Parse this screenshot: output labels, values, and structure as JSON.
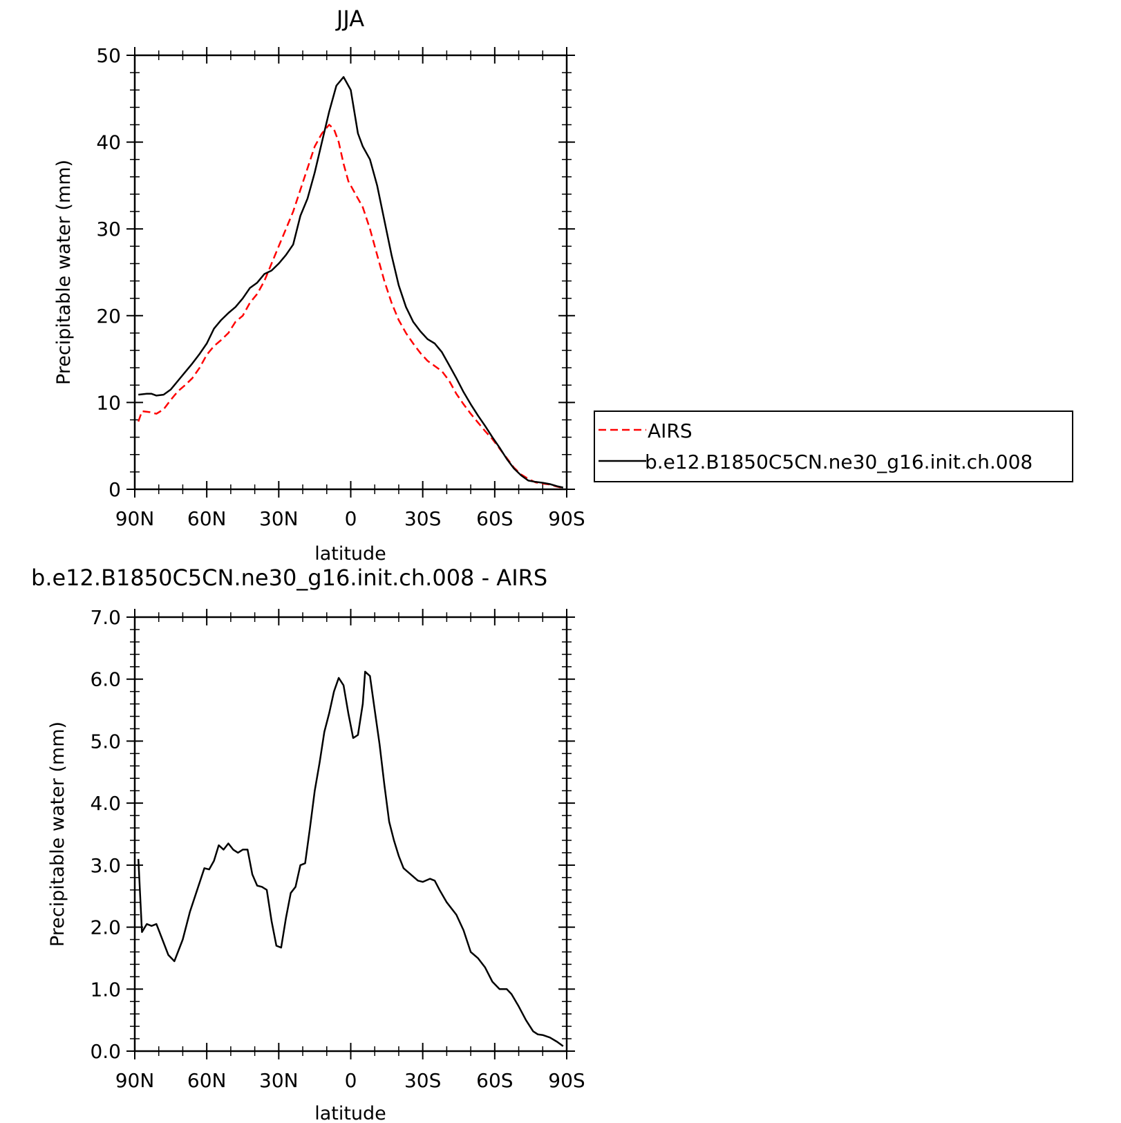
{
  "chart_data": [
    {
      "type": "line",
      "title": "JJA",
      "xlabel": "latitude",
      "ylabel": "Precipitable water (mm)",
      "xlim": [
        90,
        -90
      ],
      "ylim": [
        0,
        50
      ],
      "x_ticks": [
        {
          "value": 90,
          "label": "90N"
        },
        {
          "value": 60,
          "label": "60N"
        },
        {
          "value": 30,
          "label": "30N"
        },
        {
          "value": 0,
          "label": "0"
        },
        {
          "value": -30,
          "label": "30S"
        },
        {
          "value": -60,
          "label": "60S"
        },
        {
          "value": -90,
          "label": "90S"
        }
      ],
      "y_ticks": [
        {
          "value": 0,
          "label": "0"
        },
        {
          "value": 10,
          "label": "10"
        },
        {
          "value": 20,
          "label": "20"
        },
        {
          "value": 30,
          "label": "30"
        },
        {
          "value": 40,
          "label": "40"
        },
        {
          "value": 50,
          "label": "50"
        }
      ],
      "y_minor_step": 2,
      "x_minor_step": 10,
      "legend": "right",
      "series": [
        {
          "name": "AIRS",
          "color": "#ff0000",
          "dash": "dashed",
          "points": [
            [
              88.5,
              7.8
            ],
            [
              87,
              9.0
            ],
            [
              84,
              8.9
            ],
            [
              81,
              8.7
            ],
            [
              78,
              9.2
            ],
            [
              75,
              10.3
            ],
            [
              72,
              11.3
            ],
            [
              69,
              12.0
            ],
            [
              66,
              12.8
            ],
            [
              63,
              14.0
            ],
            [
              60,
              15.5
            ],
            [
              57,
              16.5
            ],
            [
              54,
              17.2
            ],
            [
              51,
              18.0
            ],
            [
              48,
              19.3
            ],
            [
              45,
              20.0
            ],
            [
              42,
              21.5
            ],
            [
              39,
              22.5
            ],
            [
              36,
              24.0
            ],
            [
              33,
              26.0
            ],
            [
              30,
              28.0
            ],
            [
              27,
              30.0
            ],
            [
              24,
              32.0
            ],
            [
              21,
              34.5
            ],
            [
              18,
              37.0
            ],
            [
              15,
              39.5
            ],
            [
              12,
              41.0
            ],
            [
              9,
              42.0
            ],
            [
              7,
              41.5
            ],
            [
              5,
              40.0
            ],
            [
              3,
              37.5
            ],
            [
              1,
              35.5
            ],
            [
              -2,
              34.0
            ],
            [
              -5,
              32.5
            ],
            [
              -8,
              30.0
            ],
            [
              -11,
              27.0
            ],
            [
              -14,
              24.0
            ],
            [
              -17,
              21.5
            ],
            [
              -20,
              19.5
            ],
            [
              -23,
              18.0
            ],
            [
              -26,
              16.8
            ],
            [
              -29,
              15.7
            ],
            [
              -32,
              14.8
            ],
            [
              -35,
              14.2
            ],
            [
              -38,
              13.6
            ],
            [
              -41,
              12.5
            ],
            [
              -44,
              11.0
            ],
            [
              -47,
              9.8
            ],
            [
              -50,
              8.7
            ],
            [
              -53,
              7.7
            ],
            [
              -56,
              6.7
            ],
            [
              -59,
              5.8
            ],
            [
              -62,
              4.7
            ],
            [
              -65,
              3.6
            ],
            [
              -68,
              2.5
            ],
            [
              -71,
              1.7
            ],
            [
              -74,
              1.2
            ],
            [
              -77,
              0.8
            ],
            [
              -80,
              0.65
            ],
            [
              -83,
              0.55
            ],
            [
              -86,
              0.3
            ],
            [
              -88.5,
              0.15
            ]
          ]
        },
        {
          "name": "b.e12.B1850C5CN.ne30_g16.init.ch.008",
          "color": "#000000",
          "dash": "solid",
          "points": [
            [
              88.5,
              10.9
            ],
            [
              85,
              11.0
            ],
            [
              83,
              11.0
            ],
            [
              81,
              10.8
            ],
            [
              78,
              10.9
            ],
            [
              75,
              11.5
            ],
            [
              72,
              12.5
            ],
            [
              69,
              13.5
            ],
            [
              66,
              14.5
            ],
            [
              63,
              15.6
            ],
            [
              60,
              16.8
            ],
            [
              57,
              18.5
            ],
            [
              54,
              19.5
            ],
            [
              51,
              20.3
            ],
            [
              48,
              21.0
            ],
            [
              45,
              22.0
            ],
            [
              42,
              23.2
            ],
            [
              39,
              23.8
            ],
            [
              36,
              24.8
            ],
            [
              33,
              25.2
            ],
            [
              30,
              26.0
            ],
            [
              27,
              27.0
            ],
            [
              24,
              28.2
            ],
            [
              21,
              31.5
            ],
            [
              18,
              33.5
            ],
            [
              15,
              36.5
            ],
            [
              12,
              40.0
            ],
            [
              9,
              43.5
            ],
            [
              6,
              46.5
            ],
            [
              3,
              47.5
            ],
            [
              0,
              46.0
            ],
            [
              -3,
              41.0
            ],
            [
              -5,
              39.5
            ],
            [
              -8,
              38.0
            ],
            [
              -11,
              35.0
            ],
            [
              -14,
              31.0
            ],
            [
              -17,
              27.0
            ],
            [
              -20,
              23.5
            ],
            [
              -23,
              21.0
            ],
            [
              -26,
              19.3
            ],
            [
              -29,
              18.2
            ],
            [
              -32,
              17.3
            ],
            [
              -35,
              16.8
            ],
            [
              -38,
              15.8
            ],
            [
              -41,
              14.3
            ],
            [
              -44,
              12.8
            ],
            [
              -47,
              11.2
            ],
            [
              -50,
              9.8
            ],
            [
              -53,
              8.5
            ],
            [
              -56,
              7.3
            ],
            [
              -59,
              6.0
            ],
            [
              -62,
              4.8
            ],
            [
              -65,
              3.5
            ],
            [
              -68,
              2.4
            ],
            [
              -71,
              1.6
            ],
            [
              -74,
              1.0
            ],
            [
              -77,
              0.85
            ],
            [
              -80,
              0.75
            ],
            [
              -83,
              0.6
            ],
            [
              -86,
              0.35
            ],
            [
              -88.5,
              0.2
            ]
          ]
        }
      ]
    },
    {
      "type": "line",
      "title": "b.e12.B1850C5CN.ne30_g16.init.ch.008 - AIRS",
      "xlabel": "latitude",
      "ylabel": "Precipitable water (mm)",
      "xlim": [
        90,
        -90
      ],
      "ylim": [
        0,
        7
      ],
      "x_ticks": [
        {
          "value": 90,
          "label": "90N"
        },
        {
          "value": 60,
          "label": "60N"
        },
        {
          "value": 30,
          "label": "30N"
        },
        {
          "value": 0,
          "label": "0"
        },
        {
          "value": -30,
          "label": "30S"
        },
        {
          "value": -60,
          "label": "60S"
        },
        {
          "value": -90,
          "label": "90S"
        }
      ],
      "y_ticks": [
        {
          "value": 0,
          "label": "0.0"
        },
        {
          "value": 1,
          "label": "1.0"
        },
        {
          "value": 2,
          "label": "2.0"
        },
        {
          "value": 3,
          "label": "3.0"
        },
        {
          "value": 4,
          "label": "4.0"
        },
        {
          "value": 5,
          "label": "5.0"
        },
        {
          "value": 6,
          "label": "6.0"
        },
        {
          "value": 7,
          "label": "7.0"
        }
      ],
      "y_minor_step": 0.2,
      "x_minor_step": 10,
      "series": [
        {
          "color": "#000000",
          "dash": "solid",
          "points": [
            [
              88.5,
              3.1
            ],
            [
              87,
              1.92
            ],
            [
              85,
              2.05
            ],
            [
              83,
              2.02
            ],
            [
              81,
              2.05
            ],
            [
              78,
              1.75
            ],
            [
              76,
              1.55
            ],
            [
              73.5,
              1.45
            ],
            [
              70,
              1.8
            ],
            [
              67,
              2.25
            ],
            [
              64,
              2.6
            ],
            [
              61,
              2.95
            ],
            [
              59,
              2.93
            ],
            [
              57,
              3.07
            ],
            [
              55,
              3.32
            ],
            [
              53,
              3.25
            ],
            [
              51,
              3.35
            ],
            [
              49,
              3.25
            ],
            [
              47,
              3.2
            ],
            [
              45,
              3.25
            ],
            [
              43,
              3.25
            ],
            [
              41,
              2.85
            ],
            [
              39,
              2.67
            ],
            [
              37,
              2.65
            ],
            [
              35,
              2.6
            ],
            [
              33,
              2.1
            ],
            [
              31,
              1.7
            ],
            [
              29,
              1.67
            ],
            [
              27,
              2.15
            ],
            [
              25,
              2.55
            ],
            [
              23,
              2.65
            ],
            [
              21,
              3.0
            ],
            [
              19,
              3.03
            ],
            [
              17,
              3.6
            ],
            [
              15,
              4.2
            ],
            [
              13,
              4.65
            ],
            [
              11,
              5.15
            ],
            [
              9,
              5.45
            ],
            [
              7,
              5.8
            ],
            [
              5,
              6.02
            ],
            [
              3,
              5.9
            ],
            [
              1,
              5.45
            ],
            [
              -1,
              5.05
            ],
            [
              -3,
              5.1
            ],
            [
              -5,
              5.6
            ],
            [
              -6,
              6.12
            ],
            [
              -8,
              6.05
            ],
            [
              -10,
              5.5
            ],
            [
              -12,
              4.95
            ],
            [
              -14,
              4.3
            ],
            [
              -16,
              3.7
            ],
            [
              -18,
              3.4
            ],
            [
              -20,
              3.15
            ],
            [
              -22,
              2.95
            ],
            [
              -25,
              2.85
            ],
            [
              -28,
              2.75
            ],
            [
              -30,
              2.73
            ],
            [
              -33,
              2.78
            ],
            [
              -35,
              2.75
            ],
            [
              -37,
              2.6
            ],
            [
              -40,
              2.4
            ],
            [
              -44,
              2.2
            ],
            [
              -47,
              1.95
            ],
            [
              -50,
              1.6
            ],
            [
              -53,
              1.5
            ],
            [
              -56,
              1.35
            ],
            [
              -59,
              1.12
            ],
            [
              -62,
              1.0
            ],
            [
              -65,
              1.0
            ],
            [
              -67,
              0.92
            ],
            [
              -70,
              0.72
            ],
            [
              -73,
              0.5
            ],
            [
              -76,
              0.32
            ],
            [
              -78,
              0.27
            ],
            [
              -80,
              0.26
            ],
            [
              -83,
              0.22
            ],
            [
              -86,
              0.15
            ],
            [
              -88.5,
              0.08
            ]
          ]
        }
      ]
    }
  ]
}
